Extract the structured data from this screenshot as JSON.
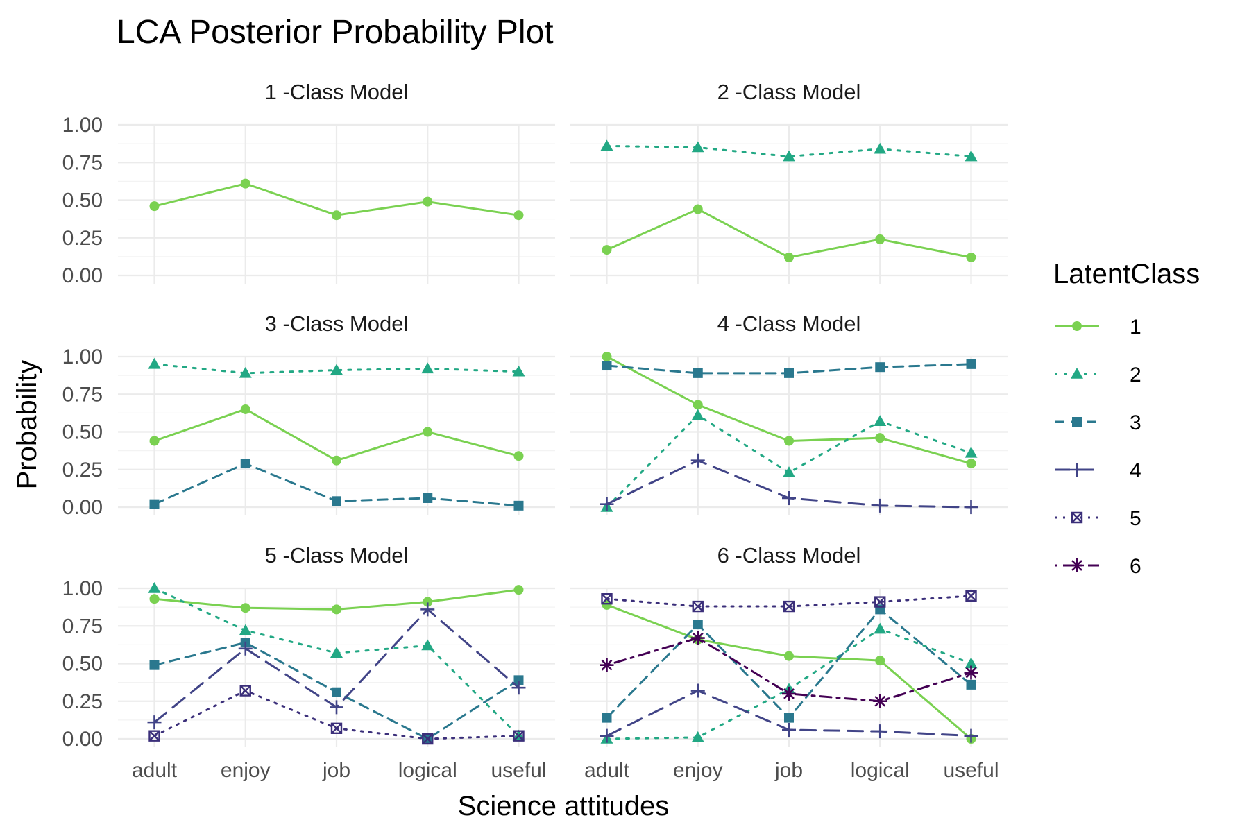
{
  "chart_data": {
    "type": "line",
    "title": "LCA Posterior Probability Plot",
    "xlabel": "Science attitudes",
    "ylabel": "Probability",
    "categories": [
      "adult",
      "enjoy",
      "job",
      "logical",
      "useful"
    ],
    "ylim": [
      0,
      1
    ],
    "yticks": [
      "0.00",
      "0.25",
      "0.50",
      "0.75",
      "1.00"
    ],
    "grid": true,
    "legend": {
      "title": "LatentClass",
      "position": "right",
      "items": [
        "1",
        "2",
        "3",
        "4",
        "5",
        "6"
      ]
    },
    "class_styles": {
      "1": {
        "color": "#7AD151",
        "dash": "solid",
        "marker": "circle"
      },
      "2": {
        "color": "#22A884",
        "dash": "dotted",
        "marker": "triangle"
      },
      "3": {
        "color": "#2A788E",
        "dash": "dashed",
        "marker": "square"
      },
      "4": {
        "color": "#414487",
        "dash": "longdash",
        "marker": "plus"
      },
      "5": {
        "color": "#3B2F7A",
        "dash": "dotted-fine",
        "marker": "boxx"
      },
      "6": {
        "color": "#440154",
        "dash": "dotdash",
        "marker": "star"
      }
    },
    "panels": [
      {
        "title": "1 -Class Model",
        "series": [
          {
            "name": "1",
            "values": [
              0.46,
              0.61,
              0.4,
              0.49,
              0.4
            ]
          }
        ]
      },
      {
        "title": "2 -Class Model",
        "series": [
          {
            "name": "1",
            "values": [
              0.17,
              0.44,
              0.12,
              0.24,
              0.12
            ]
          },
          {
            "name": "2",
            "values": [
              0.86,
              0.85,
              0.79,
              0.84,
              0.79
            ]
          }
        ]
      },
      {
        "title": "3 -Class Model",
        "series": [
          {
            "name": "1",
            "values": [
              0.44,
              0.65,
              0.31,
              0.5,
              0.34
            ]
          },
          {
            "name": "2",
            "values": [
              0.95,
              0.89,
              0.91,
              0.92,
              0.9
            ]
          },
          {
            "name": "3",
            "values": [
              0.02,
              0.29,
              0.04,
              0.06,
              0.01
            ]
          }
        ]
      },
      {
        "title": "4 -Class Model",
        "series": [
          {
            "name": "1",
            "values": [
              1.0,
              0.68,
              0.44,
              0.46,
              0.29
            ]
          },
          {
            "name": "2",
            "values": [
              0.0,
              0.61,
              0.23,
              0.57,
              0.36
            ]
          },
          {
            "name": "3",
            "values": [
              0.94,
              0.89,
              0.89,
              0.93,
              0.95
            ]
          },
          {
            "name": "4",
            "values": [
              0.02,
              0.31,
              0.06,
              0.01,
              0.0
            ]
          }
        ]
      },
      {
        "title": "5 -Class Model",
        "series": [
          {
            "name": "1",
            "values": [
              0.93,
              0.87,
              0.86,
              0.91,
              0.99
            ]
          },
          {
            "name": "2",
            "values": [
              1.0,
              0.72,
              0.57,
              0.62,
              0.02
            ]
          },
          {
            "name": "3",
            "values": [
              0.49,
              0.64,
              0.31,
              0.0,
              0.39
            ]
          },
          {
            "name": "4",
            "values": [
              0.11,
              0.6,
              0.21,
              0.86,
              0.34
            ]
          },
          {
            "name": "5",
            "values": [
              0.02,
              0.32,
              0.07,
              0.0,
              0.02
            ]
          }
        ]
      },
      {
        "title": "6 -Class Model",
        "series": [
          {
            "name": "1",
            "values": [
              0.89,
              0.66,
              0.55,
              0.52,
              0.0
            ]
          },
          {
            "name": "2",
            "values": [
              0.0,
              0.01,
              0.33,
              0.73,
              0.5
            ]
          },
          {
            "name": "3",
            "values": [
              0.14,
              0.76,
              0.14,
              0.86,
              0.36
            ]
          },
          {
            "name": "4",
            "values": [
              0.02,
              0.32,
              0.06,
              0.05,
              0.02
            ]
          },
          {
            "name": "5",
            "values": [
              0.93,
              0.88,
              0.88,
              0.91,
              0.95
            ]
          },
          {
            "name": "6",
            "values": [
              0.49,
              0.67,
              0.3,
              0.25,
              0.44
            ]
          }
        ]
      }
    ]
  }
}
